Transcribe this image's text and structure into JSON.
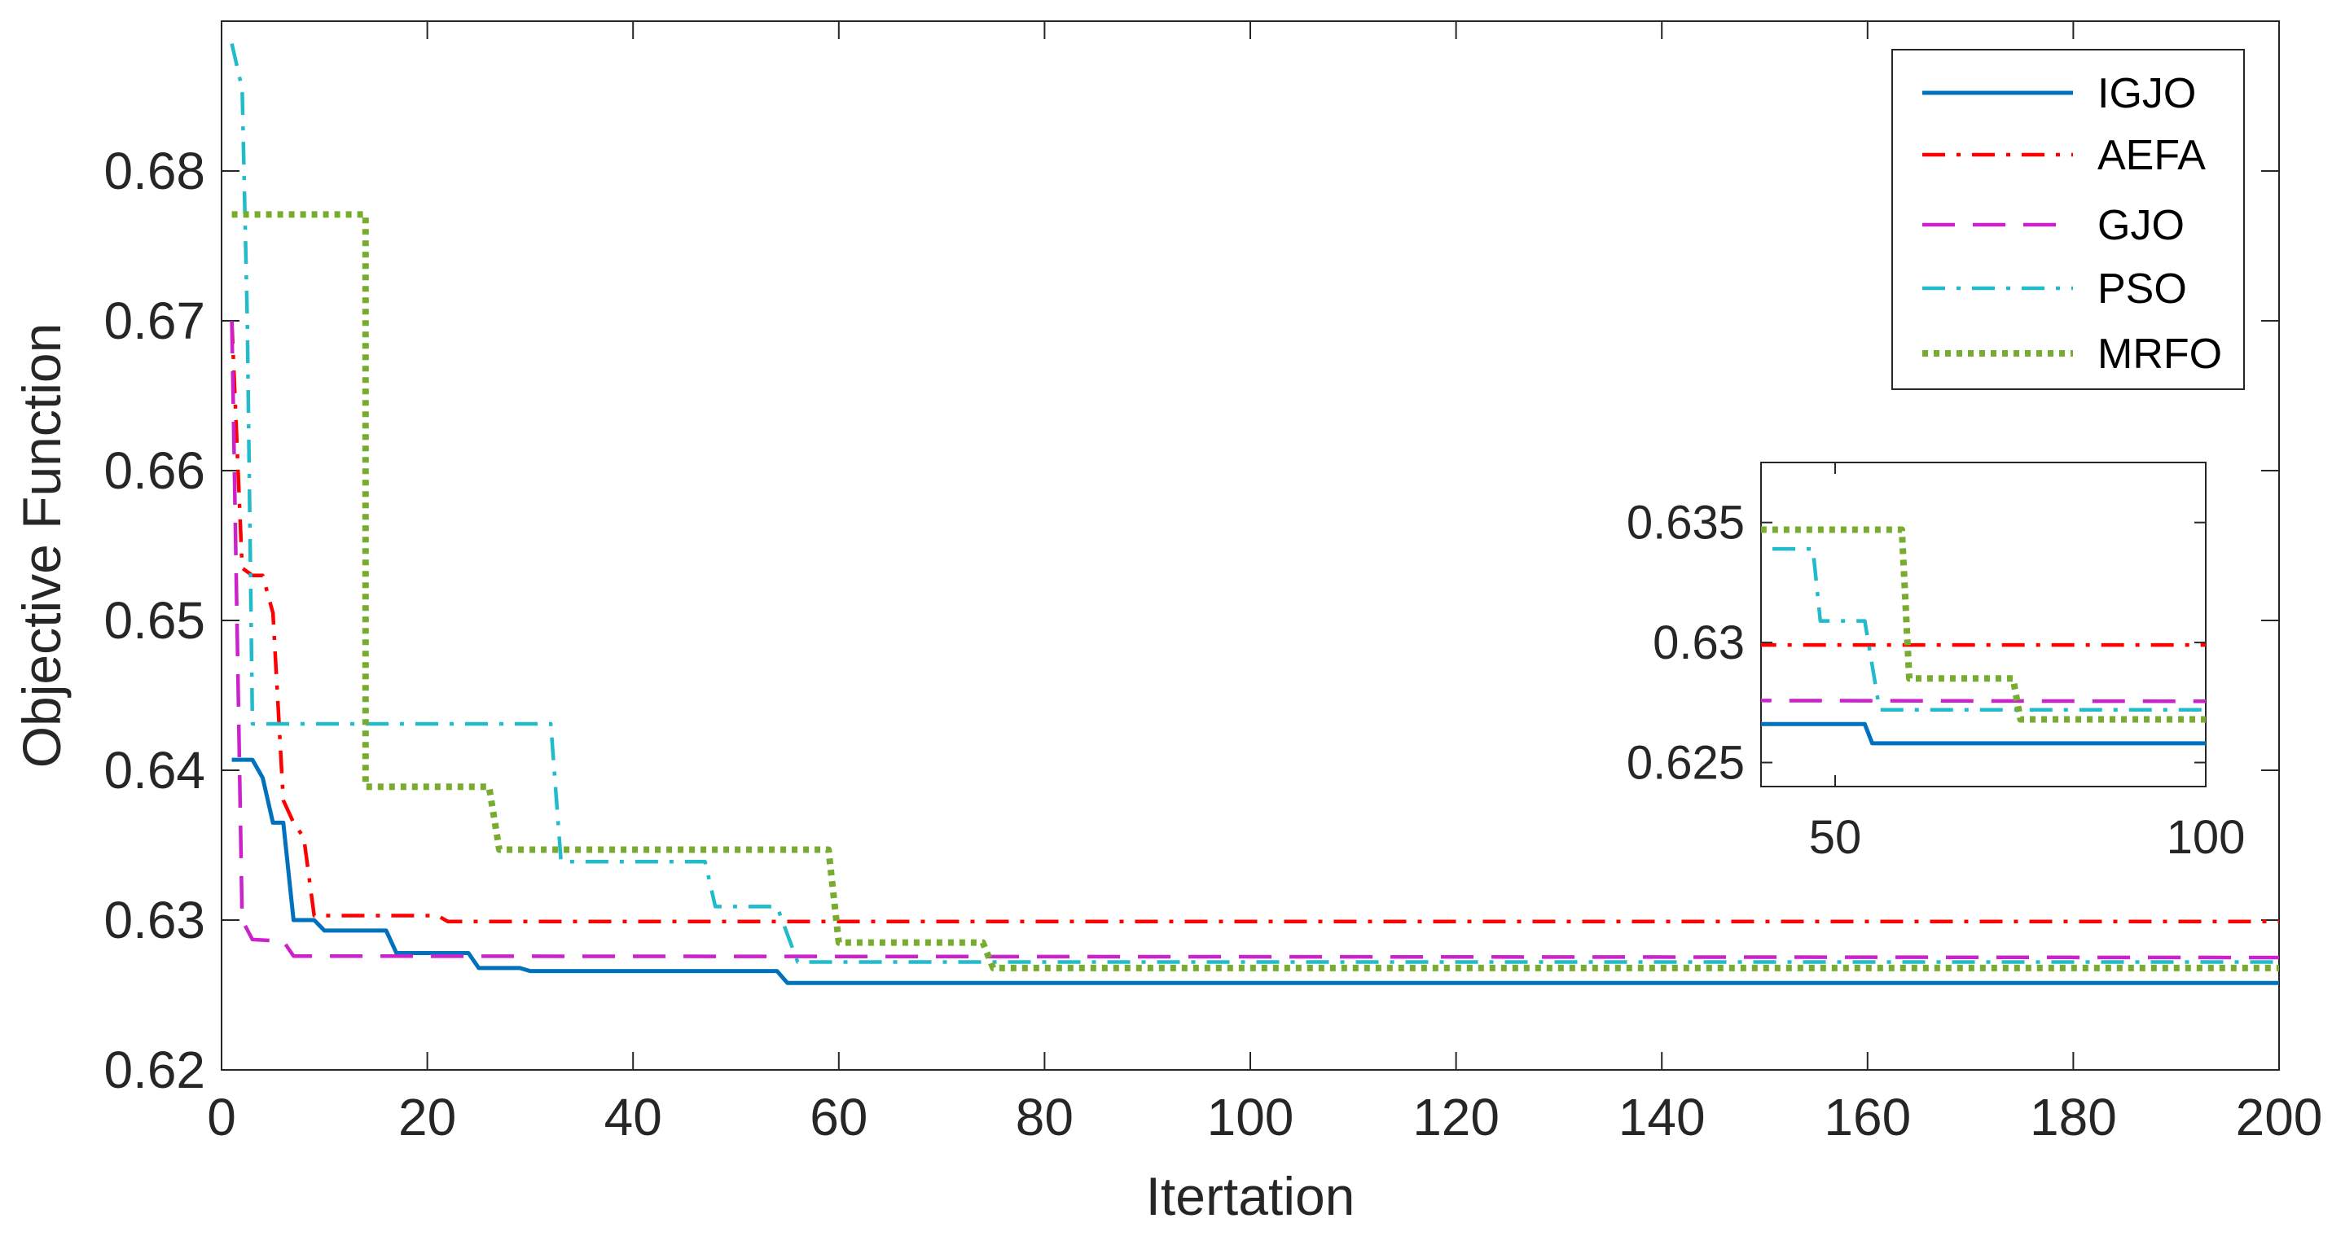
{
  "chart_data": {
    "type": "line",
    "title": "",
    "xlabel": "Itertation",
    "ylabel": "Objective Function",
    "xlim": [
      0,
      200
    ],
    "ylim": [
      0.62,
      0.69
    ],
    "xticks": [
      0,
      20,
      40,
      60,
      80,
      100,
      120,
      140,
      160,
      180,
      200
    ],
    "yticks": [
      0.62,
      0.63,
      0.64,
      0.65,
      0.66,
      0.67,
      0.68
    ],
    "ytick_labels": [
      "0.62",
      "0.63",
      "0.64",
      "0.65",
      "0.66",
      "0.67",
      "0.68"
    ],
    "legend_position": "top-right",
    "series": [
      {
        "name": "IGJO",
        "color": "#0072BD",
        "style": "solid",
        "points": [
          [
            1,
            0.6407
          ],
          [
            3,
            0.6407
          ],
          [
            4,
            0.6395
          ],
          [
            5,
            0.6365
          ],
          [
            6,
            0.6365
          ],
          [
            7,
            0.63
          ],
          [
            9,
            0.63
          ],
          [
            10,
            0.6293
          ],
          [
            16,
            0.6293
          ],
          [
            17,
            0.6278
          ],
          [
            24,
            0.6278
          ],
          [
            25,
            0.6268
          ],
          [
            29,
            0.6268
          ],
          [
            30,
            0.6266
          ],
          [
            54,
            0.6266
          ],
          [
            55,
            0.6258
          ],
          [
            200,
            0.6258
          ]
        ]
      },
      {
        "name": "AEFA",
        "color": "#FF0000",
        "style": "dashdot",
        "points": [
          [
            1,
            0.67
          ],
          [
            2,
            0.6535
          ],
          [
            3,
            0.653
          ],
          [
            4,
            0.653
          ],
          [
            5,
            0.6505
          ],
          [
            6,
            0.638
          ],
          [
            7,
            0.6365
          ],
          [
            8,
            0.6355
          ],
          [
            9,
            0.6303
          ],
          [
            21,
            0.6303
          ],
          [
            22,
            0.6299
          ],
          [
            200,
            0.6299
          ]
        ]
      },
      {
        "name": "GJO",
        "color": "#CC22CC",
        "style": "dashed",
        "points": [
          [
            1,
            0.67
          ],
          [
            2,
            0.63
          ],
          [
            3,
            0.6287
          ],
          [
            6,
            0.6286
          ],
          [
            7,
            0.6276
          ],
          [
            200,
            0.6275
          ]
        ]
      },
      {
        "name": "PSO",
        "color": "#22BBCC",
        "style": "dashdot",
        "points": [
          [
            1,
            0.6885
          ],
          [
            2,
            0.6855
          ],
          [
            2.5,
            0.67
          ],
          [
            3,
            0.6431
          ],
          [
            32,
            0.6431
          ],
          [
            33,
            0.6339
          ],
          [
            47,
            0.6339
          ],
          [
            48,
            0.6309
          ],
          [
            54,
            0.6309
          ],
          [
            56,
            0.6272
          ],
          [
            200,
            0.6272
          ]
        ]
      },
      {
        "name": "MRFO",
        "color": "#77AC30",
        "style": "dotted",
        "points": [
          [
            1,
            0.6771
          ],
          [
            14,
            0.6771
          ],
          [
            14,
            0.6389
          ],
          [
            26,
            0.6389
          ],
          [
            27,
            0.6347
          ],
          [
            59,
            0.6347
          ],
          [
            60,
            0.6285
          ],
          [
            74,
            0.6285
          ],
          [
            75,
            0.6268
          ],
          [
            200,
            0.6268
          ]
        ]
      }
    ],
    "inset": {
      "xlim": [
        40,
        100
      ],
      "ylim": [
        0.624,
        0.6375
      ],
      "xticks": [
        50,
        100
      ],
      "yticks": [
        0.625,
        0.63,
        0.635
      ],
      "ytick_labels": [
        "0.625",
        "0.63",
        "0.635"
      ]
    }
  }
}
